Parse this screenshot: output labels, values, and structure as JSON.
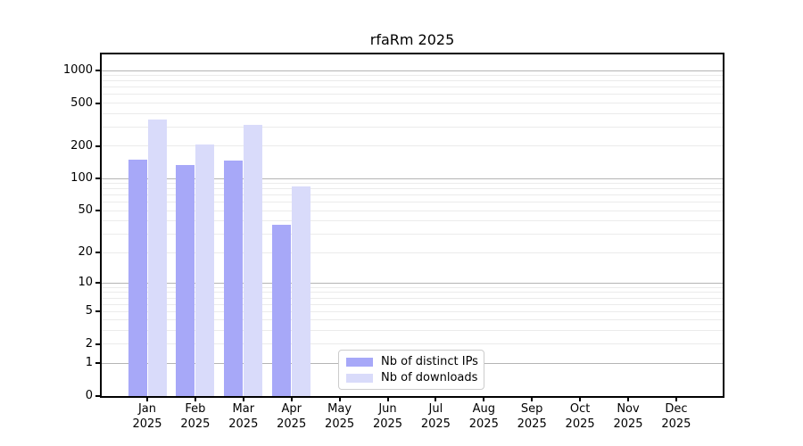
{
  "chart_data": {
    "type": "bar",
    "title": "rfaRm 2025",
    "year": "2025",
    "categories": [
      "Jan",
      "Feb",
      "Mar",
      "Apr",
      "May",
      "Jun",
      "Jul",
      "Aug",
      "Sep",
      "Oct",
      "Nov",
      "Dec"
    ],
    "series": [
      {
        "name": "Nb of distinct IPs",
        "color": "#a7a8f8",
        "values": [
          150,
          134,
          147,
          37,
          0,
          0,
          0,
          0,
          0,
          0,
          0,
          0
        ]
      },
      {
        "name": "Nb of downloads",
        "color": "#d9dbfa",
        "values": [
          350,
          206,
          316,
          85,
          0,
          0,
          0,
          0,
          0,
          0,
          0,
          0
        ]
      }
    ],
    "xlabel": "",
    "ylabel": "",
    "y_scale": "log10(1+x)",
    "y_ticks": [
      0,
      1,
      2,
      5,
      10,
      20,
      50,
      100,
      200,
      500,
      1000
    ],
    "ylim": [
      0,
      1433
    ],
    "grid": "horizontal",
    "grid_major_values": [
      1,
      10,
      100,
      1000
    ],
    "legend_position": "lower-center",
    "colors": {
      "distinct_ips": "#a7a8f8",
      "downloads": "#d9dbfa",
      "grid_major": "#b4b4b4",
      "grid_minor": "#ebebeb",
      "spine": "#000000"
    }
  }
}
